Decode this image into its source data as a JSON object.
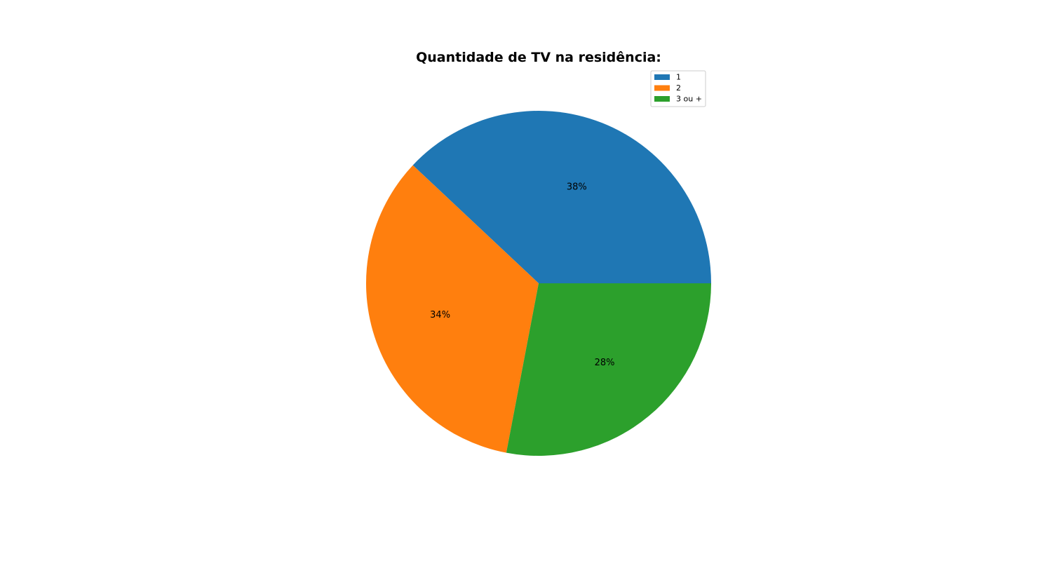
{
  "chart_data": {
    "type": "pie",
    "title": "Quantidade de TV na residência:",
    "categories": [
      "1",
      "2",
      "3 ou +"
    ],
    "values": [
      38,
      34,
      28
    ],
    "value_labels": [
      "38%",
      "34%",
      "28%"
    ],
    "colors": [
      "#1f77b4",
      "#ff7f0e",
      "#2ca02c"
    ],
    "start_angle_deg": 0,
    "direction": "counterclockwise",
    "legend": {
      "placement": "top-right",
      "entries": [
        "1",
        "2",
        "3 ou +"
      ]
    }
  }
}
